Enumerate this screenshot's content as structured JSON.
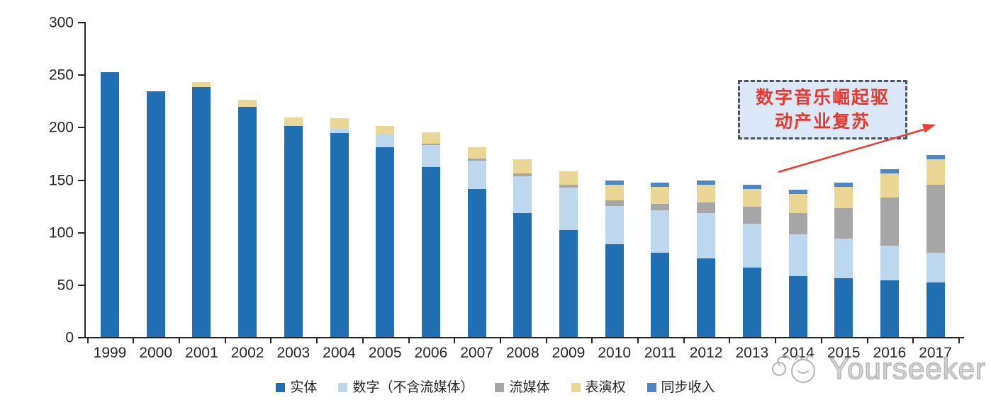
{
  "chart_data": {
    "type": "bar",
    "stacked": true,
    "title": "",
    "xlabel": "",
    "ylabel": "",
    "ylim": [
      0,
      300
    ],
    "yticks": [
      0,
      50,
      100,
      150,
      200,
      250,
      300
    ],
    "grid": false,
    "legend_position": "bottom",
    "categories": [
      "1999",
      "2000",
      "2001",
      "2002",
      "2003",
      "2004",
      "2005",
      "2006",
      "2007",
      "2008",
      "2009",
      "2010",
      "2011",
      "2012",
      "2013",
      "2014",
      "2015",
      "2016",
      "2017"
    ],
    "series": [
      {
        "key": "physical",
        "name": "实体",
        "color": "#1f6fb2",
        "values": [
          252,
          234,
          238,
          219,
          201,
          194,
          181,
          162,
          141,
          118,
          102,
          88,
          80,
          75,
          66,
          58,
          56,
          54,
          52
        ]
      },
      {
        "key": "digital-excl-streaming",
        "name": "数字（不含流媒体）",
        "color": "#bdd7ee",
        "values": [
          0,
          0,
          0,
          0,
          0,
          4,
          12,
          21,
          27,
          35,
          40,
          37,
          41,
          43,
          42,
          40,
          38,
          33,
          28
        ]
      },
      {
        "key": "streaming",
        "name": "流媒体",
        "color": "#a6a6a6",
        "values": [
          0,
          0,
          0,
          0,
          0,
          0,
          0,
          1,
          2,
          3,
          3,
          5,
          6,
          10,
          16,
          20,
          29,
          46,
          65
        ]
      },
      {
        "key": "performance-rights",
        "name": "表演权",
        "color": "#ead795",
        "values": [
          0,
          0,
          5,
          7,
          8,
          10,
          8,
          11,
          11,
          13,
          13,
          15,
          16,
          17,
          17,
          18,
          20,
          23,
          24
        ]
      },
      {
        "key": "sync-revenue",
        "name": "同步收入",
        "color": "#4e87c5",
        "values": [
          0,
          0,
          0,
          0,
          0,
          0,
          0,
          0,
          0,
          0,
          0,
          4,
          4,
          4,
          4,
          4,
          4,
          4,
          4
        ]
      }
    ]
  },
  "annotation": {
    "line1": "数字音乐崛起驱",
    "line2": "动产业复苏",
    "text_color": "#e8382e",
    "border_color": "#44546a",
    "fill_color": "#dbe8f7",
    "arrow_color": "#f0392f"
  },
  "watermark": {
    "text": "Yourseeker"
  },
  "colors": {
    "axis": "#262626",
    "bar_dark_blue": "#1f6fb2",
    "bar_light_blue": "#bdd7ee",
    "bar_gray": "#a6a6a6",
    "bar_tan": "#ead795",
    "bar_sync_blue": "#4e87c5",
    "watermark_gray": "#b5b5b5"
  }
}
